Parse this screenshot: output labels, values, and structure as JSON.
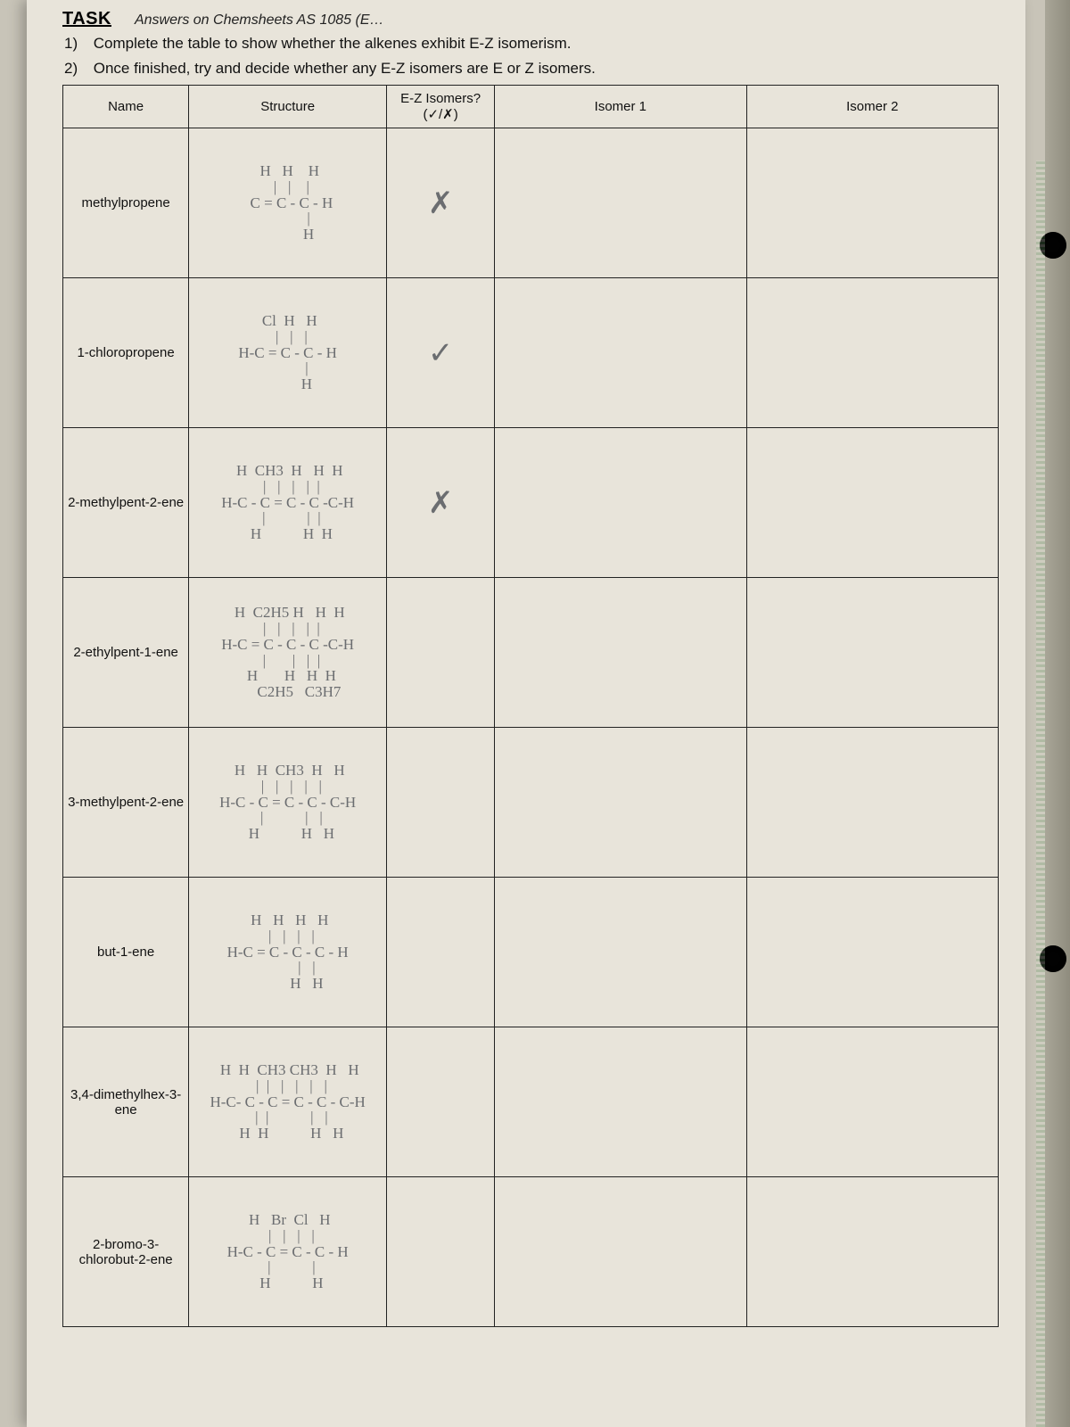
{
  "header": {
    "task_label": "TASK",
    "cut_text": "Answers on Chemsheets AS 1085 (E…",
    "instr1_num": "1)",
    "instr1": "Complete the table to show whether the alkenes exhibit E-Z isomerism.",
    "instr2_num": "2)",
    "instr2": "Once finished, try and decide whether any E-Z isomers are E or Z isomers."
  },
  "columns": {
    "name": "Name",
    "structure": "Structure",
    "ez": "E-Z Isomers?\n(✓/✗)",
    "iso1": "Isomer 1",
    "iso2": "Isomer 2"
  },
  "rows": [
    {
      "name": "methylpropene",
      "structure": " H   H    H\n  |   |    |\n  C = C - C - H\n           |\n           H",
      "ez": "✗"
    },
    {
      "name": "1-chloropropene",
      "structure": " Cl  H   H\n  |   |   |\nH-C = C - C - H\n          |\n          H",
      "ez": "✓"
    },
    {
      "name": "2-methylpent-2-ene",
      "structure": " H  CH3  H   H  H\n  |   |   |   |  |\nH-C - C = C - C -C-H\n  |           |  |\n  H           H  H",
      "ez": "✗"
    },
    {
      "name": "2-ethylpent-1-ene",
      "structure": " H  C2H5 H   H  H\n  |   |   |   |  |\nH-C = C - C - C -C-H\n  |       |   |  |\n  H       H   H  H\n      C2H5   C3H7",
      "ez": ""
    },
    {
      "name": "3-methylpent-2-ene",
      "structure": " H   H  CH3  H   H\n  |   |   |   |   |\nH-C - C = C - C - C-H\n  |           |   |\n  H           H   H",
      "ez": ""
    },
    {
      "name": "but-1-ene",
      "structure": " H   H   H   H\n  |   |   |   |\nH-C = C - C - C - H\n          |   |\n          H   H",
      "ez": ""
    },
    {
      "name": "3,4-dimethylhex-3-ene",
      "structure": " H  H  CH3 CH3  H   H\n  |  |   |   |   |   |\nH-C- C - C = C - C - C-H\n  |  |           |   |\n  H  H           H   H",
      "ez": ""
    },
    {
      "name": "2-bromo-3-chlorobut-2-ene",
      "structure": " H   Br  Cl   H\n  |   |   |   |\nH-C - C = C - C - H\n  |           |\n  H           H",
      "ez": ""
    }
  ],
  "style": {
    "paper_bg": "#e8e4da",
    "body_bg": "#c8c4b8",
    "border_color": "#222",
    "hand_color": "#6b6d70"
  }
}
